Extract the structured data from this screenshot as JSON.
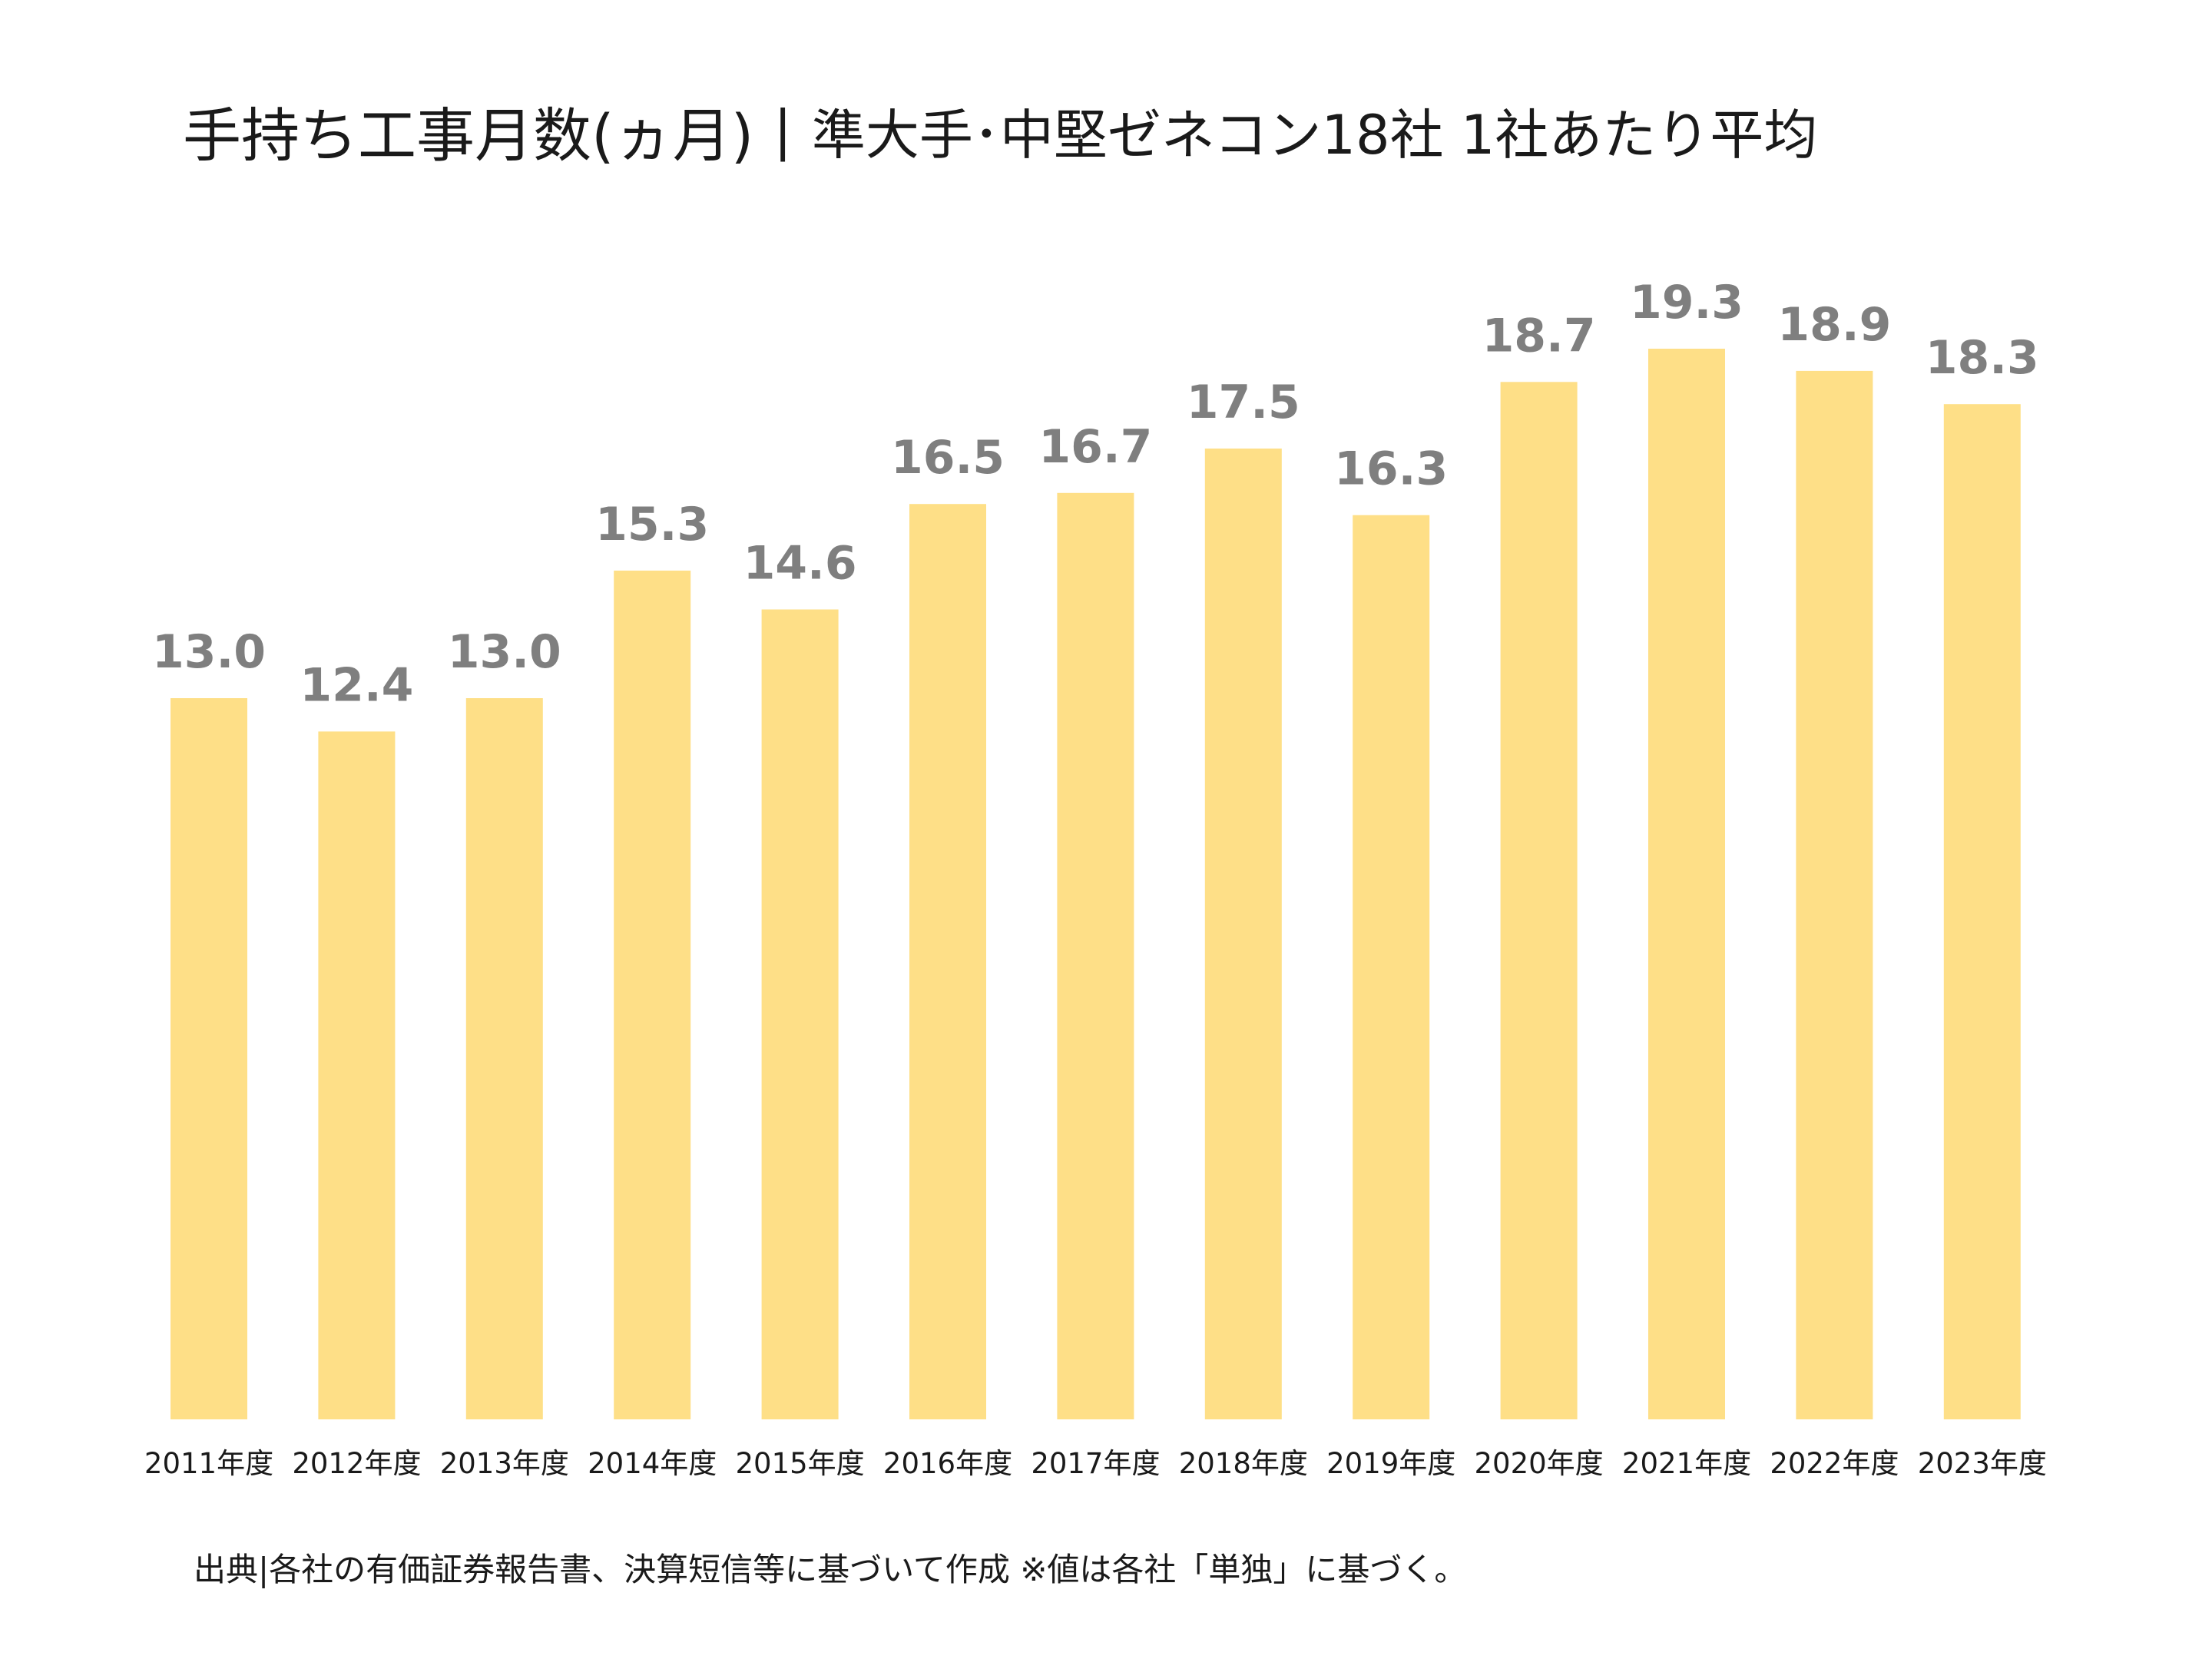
{
  "title": {
    "main": "手持ち工事月数(ヵ月)",
    "separator": "|",
    "sub": "準大手･中堅ゼネコン18社 1社あたり平均"
  },
  "footnote": "出典|各社の有価証券報告書、決算短信等に基づいて作成   ※値は各社「単独」に基づく。",
  "colors": {
    "bar": "#fedf87",
    "value_label": "#7f7f7f",
    "tick_label": "#1a1a1a"
  },
  "chart_data": {
    "type": "bar",
    "categories": [
      "2011年度",
      "2012年度",
      "2013年度",
      "2014年度",
      "2015年度",
      "2016年度",
      "2017年度",
      "2018年度",
      "2019年度",
      "2020年度",
      "2021年度",
      "2022年度",
      "2023年度"
    ],
    "values": [
      13.0,
      12.4,
      13.0,
      15.3,
      14.6,
      16.5,
      16.7,
      17.5,
      16.3,
      18.7,
      19.3,
      18.9,
      18.3
    ],
    "value_labels": [
      "13.0",
      "12.4",
      "13.0",
      "15.3",
      "14.6",
      "16.5",
      "16.7",
      "17.5",
      "16.3",
      "18.7",
      "19.3",
      "18.9",
      "18.3"
    ],
    "title": "手持ち工事月数(ヵ月)|準大手･中堅ゼネコン18社 1社あたり平均",
    "xlabel": "",
    "ylabel": "",
    "ylim": [
      0,
      19.3
    ],
    "grid": false,
    "legend": "none",
    "data_labels": "above bars"
  }
}
